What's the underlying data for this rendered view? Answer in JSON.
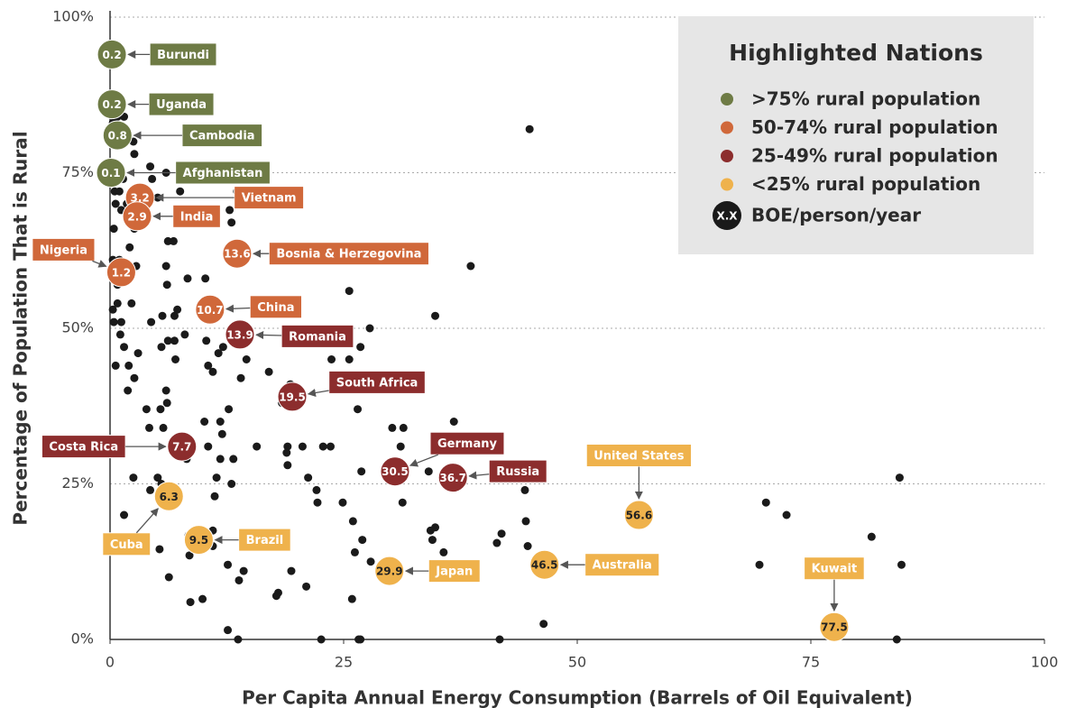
{
  "chart_data": {
    "type": "scatter",
    "xlabel": "Per Capita Annual Energy Consumption (Barrels of Oil Equivalent)",
    "ylabel": "Percentage of Population That is Rural",
    "xlim": [
      0,
      100
    ],
    "ylim": [
      0,
      100
    ],
    "xticks": [
      0,
      25,
      50,
      75,
      100
    ],
    "yticks": [
      {
        "value": 0,
        "label": "0%"
      },
      {
        "value": 25,
        "label": "25%"
      },
      {
        "value": 50,
        "label": "50%"
      },
      {
        "value": 75,
        "label": "75%"
      },
      {
        "value": 100,
        "label": "100%"
      }
    ],
    "grid": true,
    "legend": {
      "title": "Highlighted Nations",
      "position": "upper right",
      "note_symbol": "X.X",
      "note_label": "BOE/person/year"
    },
    "series": [
      {
        "name": ">75% rural population",
        "color": "#6e7b45",
        "labels": [
          "Burundi",
          "Uganda",
          "Cambodia",
          "Afghanistan"
        ],
        "x": [
          0.2,
          0.2,
          0.8,
          0.1
        ],
        "y": [
          94,
          86,
          81,
          75
        ]
      },
      {
        "name": "50-74% rural population",
        "color": "#d0683a",
        "labels": [
          "Vietnam",
          "India",
          "Bosnia & Herzegovina",
          "Nigeria",
          "China"
        ],
        "x": [
          3.2,
          2.9,
          13.6,
          1.2,
          10.7
        ],
        "y": [
          71,
          68,
          62,
          59,
          53
        ]
      },
      {
        "name": "25-49% rural population",
        "color": "#8c2d2d",
        "labels": [
          "Romania",
          "South Africa",
          "Costa Rica",
          "Germany",
          "Russia"
        ],
        "x": [
          13.9,
          19.5,
          7.7,
          30.5,
          36.7
        ],
        "y": [
          49,
          39,
          31,
          27,
          26
        ]
      },
      {
        "name": "<25% rural population",
        "color": "#efb24c",
        "labels": [
          "Cuba",
          "United States",
          "Brazil",
          "Japan",
          "Australia",
          "Kuwait"
        ],
        "x": [
          6.3,
          56.6,
          9.5,
          29.9,
          46.5,
          77.5
        ],
        "y": [
          23,
          20,
          16,
          11,
          12,
          2
        ]
      },
      {
        "color": "#1a1a1a",
        "x": [
          0.3,
          0.8,
          1.5,
          2.5,
          2.6,
          4.3,
          1.4,
          0.5,
          1,
          0.6,
          1.2,
          1.8,
          4.5,
          6,
          7.5,
          13.6,
          12.8,
          5.1,
          2.6,
          6.2,
          6.8,
          13,
          0.4,
          1,
          2.1,
          0.3,
          0.8,
          2.8,
          6,
          8.3,
          10.2,
          38.6,
          25.6,
          34.8,
          6.1,
          0.3,
          0.8,
          0.4,
          1.2,
          2.3,
          4.4,
          5.6,
          6.9,
          7.2,
          1.1,
          1.5,
          0.6,
          2,
          2.6,
          3,
          5.5,
          6.2,
          6.9,
          8,
          10.3,
          11.6,
          12.1,
          14.6,
          10.5,
          11,
          7,
          14,
          18.4,
          17,
          19.3,
          23.7,
          25.6,
          26.8,
          27.8,
          6,
          3.9,
          1.9,
          6.1,
          5.4,
          4.2,
          5.7,
          10.1,
          11.8,
          12.7,
          10.5,
          12,
          11.8,
          8.2,
          6.8,
          13.2,
          15.7,
          18.9,
          19,
          20.6,
          22.8,
          23.6,
          26.5,
          30.2,
          31.4,
          36.8,
          31.1,
          19,
          21.2,
          26.9,
          34.1,
          13,
          11.4,
          11.2,
          5.1,
          4.3,
          2.5,
          5.5,
          1.5,
          22.1,
          22.2,
          24.9,
          26,
          31.3,
          44.4,
          84.5,
          70.2,
          72.4,
          44.5,
          34.3,
          34.8,
          35.7,
          34.5,
          27,
          26.2,
          41.9,
          41.4,
          44.7,
          81.5,
          69.5,
          84.7,
          27.9,
          5.3,
          6.3,
          8.4,
          8.5,
          11,
          11,
          12.6,
          13.8,
          14.3,
          19.4,
          21,
          18,
          8.6,
          9.9,
          17.8,
          25.9,
          12.6,
          13.7,
          22.6,
          26.6,
          26.8,
          41.7,
          46.4,
          84.2,
          44.9
        ],
        "y": [
          83,
          84,
          84,
          80,
          78,
          76,
          74,
          72,
          72,
          70,
          69,
          70,
          74,
          75,
          72,
          72,
          69,
          71,
          66,
          64,
          64,
          67,
          66,
          61,
          63,
          61,
          57,
          60,
          60,
          58,
          58,
          60,
          56,
          52,
          57,
          53,
          54,
          51,
          51,
          54,
          51,
          52,
          52,
          53,
          49,
          47,
          44,
          44,
          42,
          46,
          47,
          48,
          48,
          49,
          48,
          46,
          47,
          45,
          44,
          43,
          45,
          42,
          38,
          43,
          41,
          45,
          45,
          47,
          50,
          40,
          37,
          40,
          38,
          37,
          34,
          34,
          35,
          35,
          37,
          31,
          33,
          29,
          29,
          31,
          29,
          31,
          30,
          31,
          31,
          31,
          31,
          37,
          34,
          34,
          35,
          31,
          28,
          26,
          27,
          27,
          25,
          26,
          23,
          26,
          24,
          26,
          25,
          20,
          24,
          22,
          22,
          19,
          22,
          24,
          26,
          22,
          20,
          19,
          17.5,
          18,
          14,
          16,
          16,
          14,
          17,
          15.5,
          15,
          16.5,
          12,
          12,
          12.5,
          14.5,
          10,
          16.7,
          13.5,
          17.5,
          15,
          12,
          9.5,
          11,
          11,
          8.5,
          7.5,
          6,
          6.5,
          7,
          6.5,
          1.5,
          0,
          0,
          0,
          0,
          0,
          2.5,
          0,
          82
        ]
      }
    ]
  }
}
